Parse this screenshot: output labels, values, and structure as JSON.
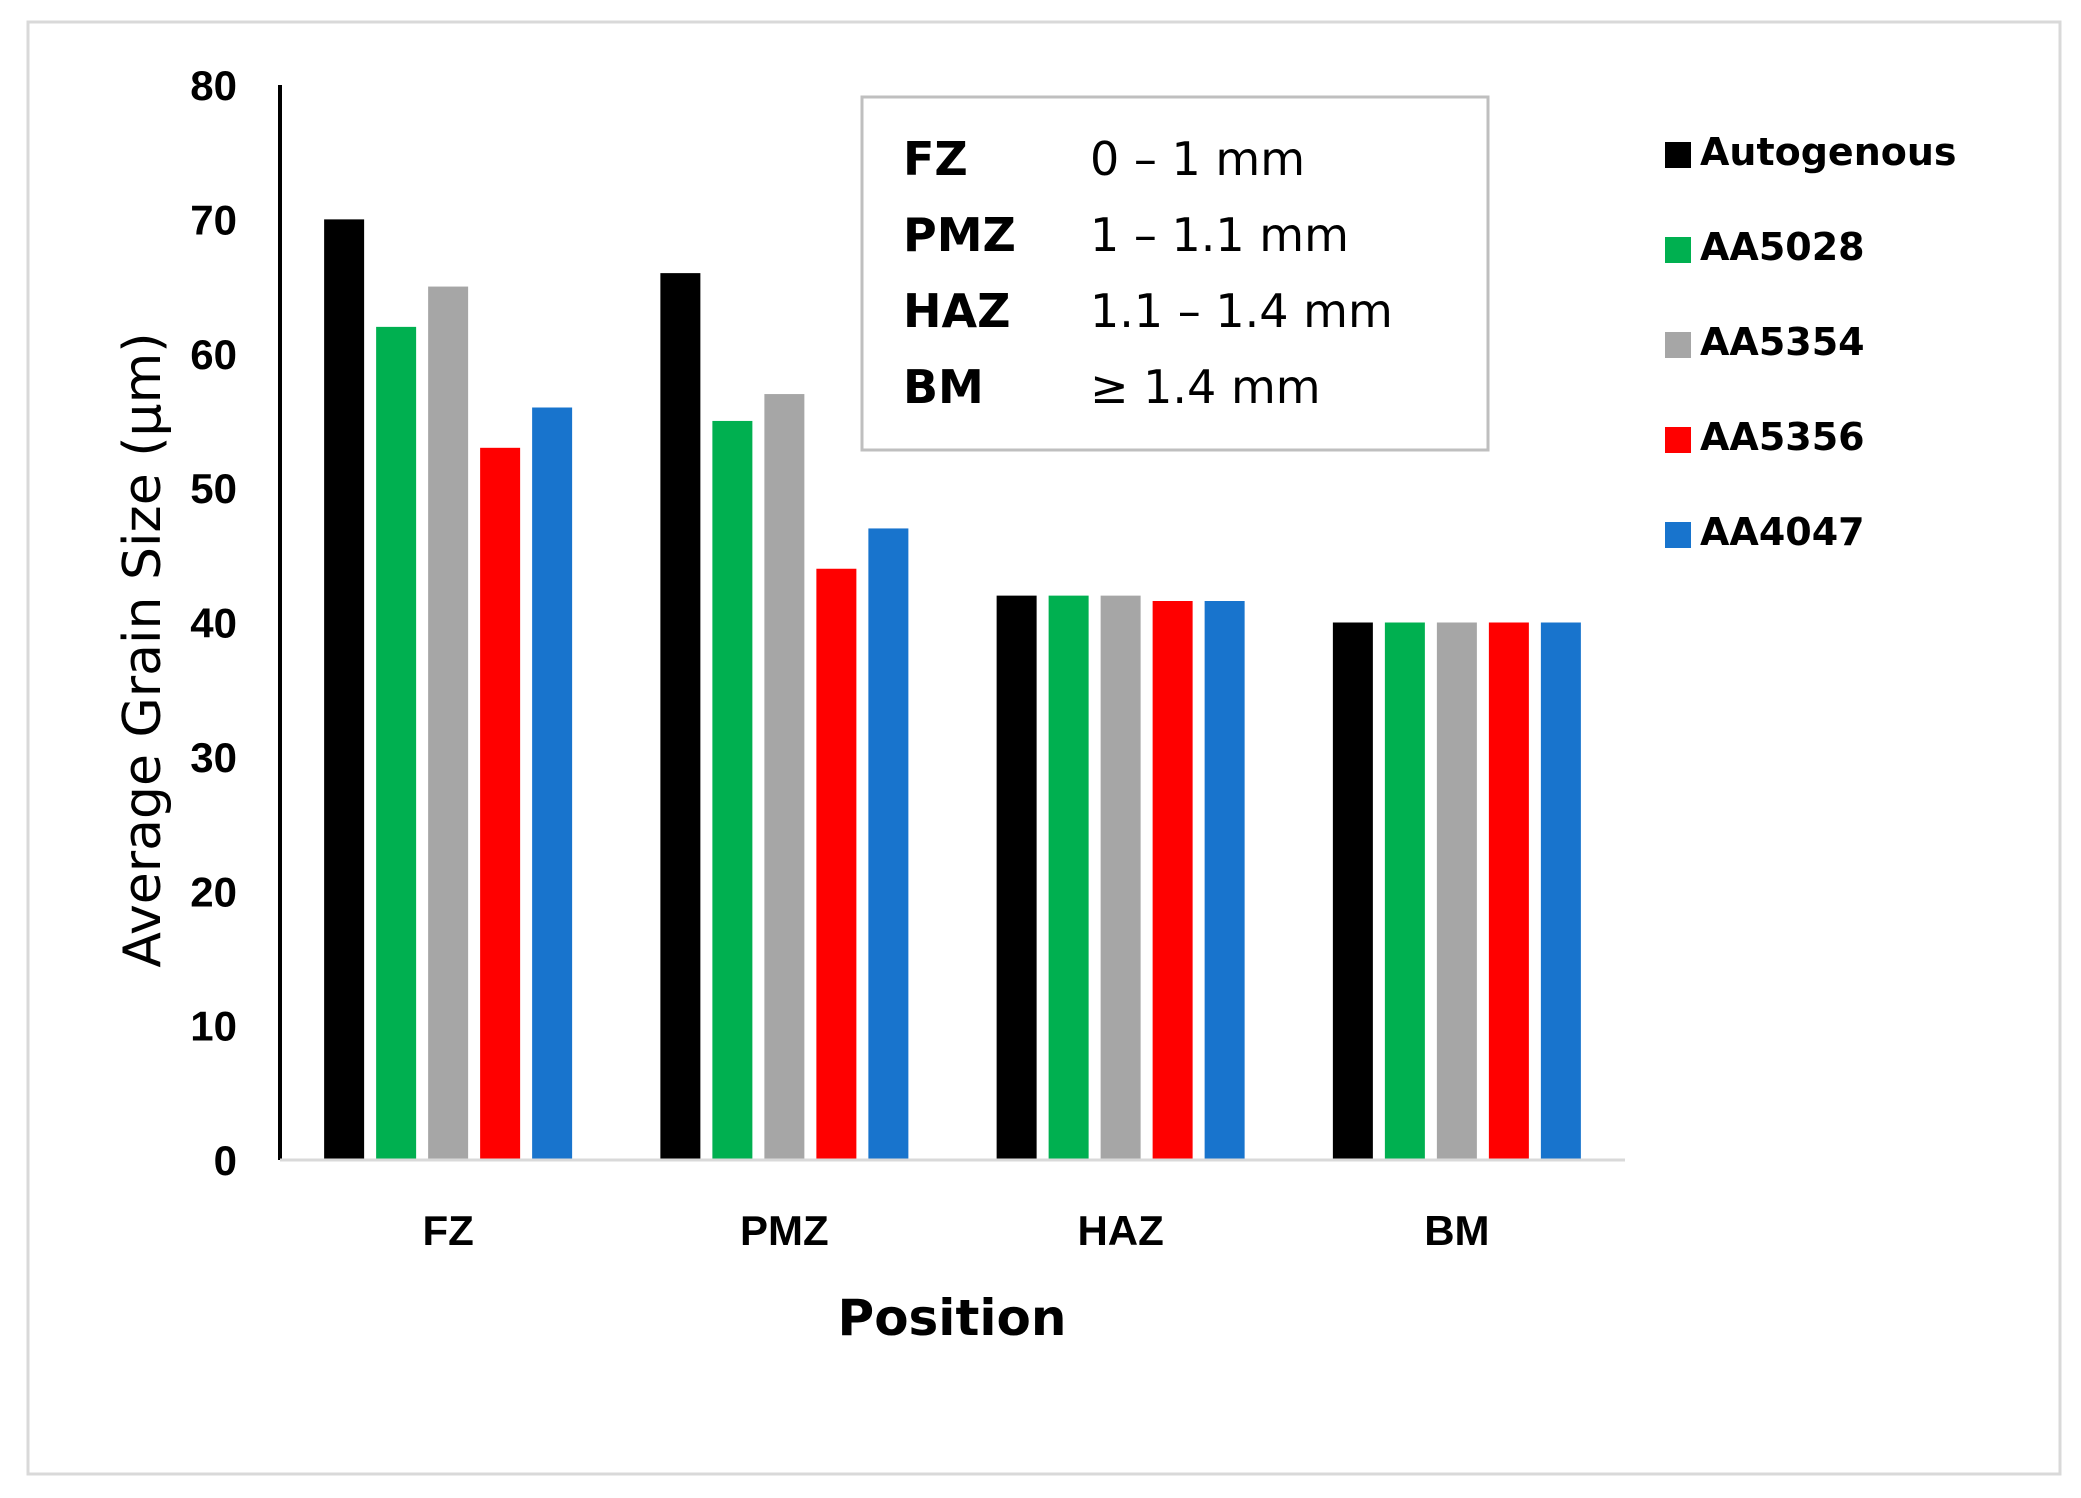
{
  "chart_data": {
    "type": "bar",
    "title": "",
    "xlabel": "Position",
    "ylabel": "Average Grain Size (µm)",
    "ylim": [
      0,
      80
    ],
    "yticks": [
      0,
      10,
      20,
      30,
      40,
      50,
      60,
      70,
      80
    ],
    "grid": false,
    "legend_position": "right",
    "categories": [
      "FZ",
      "PMZ",
      "HAZ",
      "BM"
    ],
    "series": [
      {
        "name": "Autogenous",
        "color": "#000000",
        "values": [
          70,
          66,
          42,
          40
        ]
      },
      {
        "name": "AA5028",
        "color": "#00b050",
        "values": [
          62,
          55,
          42,
          40
        ]
      },
      {
        "name": "AA5354",
        "color": "#a6a6a6",
        "values": [
          65,
          57,
          42,
          40
        ]
      },
      {
        "name": "AA5356",
        "color": "#ff0000",
        "values": [
          53,
          44,
          41.6,
          40
        ]
      },
      {
        "name": "AA4047",
        "color": "#1874cd",
        "values": [
          56,
          47,
          41.6,
          40
        ]
      }
    ],
    "annotation_box": [
      {
        "key": "FZ",
        "range": "0 – 1 mm"
      },
      {
        "key": "PMZ",
        "range": "1 – 1.1 mm"
      },
      {
        "key": "HAZ",
        "range": "1.1 – 1.4 mm"
      },
      {
        "key": "BM",
        "range": "≥ 1.4 mm"
      }
    ]
  }
}
